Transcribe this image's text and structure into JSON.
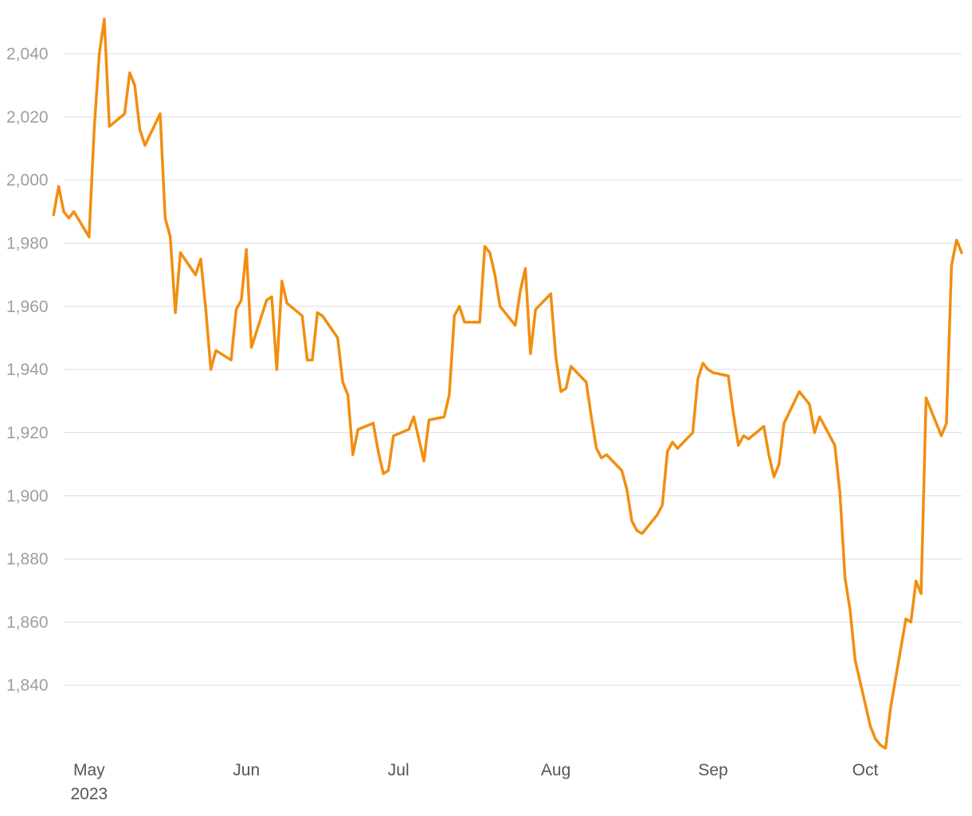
{
  "chart_data": {
    "type": "line",
    "title": "",
    "xlabel": "",
    "ylabel": "",
    "grid": true,
    "x_range": [
      "2023-04-26",
      "2023-10-20"
    ],
    "ylim": [
      1820,
      2052
    ],
    "y_ticks": [
      1840,
      1860,
      1880,
      1900,
      1920,
      1940,
      1960,
      1980,
      2000,
      2020,
      2040
    ],
    "y_tick_labels": [
      "1,840",
      "1,860",
      "1,880",
      "1,900",
      "1,920",
      "1,940",
      "1,960",
      "1,980",
      "2,000",
      "2,020",
      "2,040"
    ],
    "x_ticks": [
      {
        "date": "2023-05-01",
        "label": "May",
        "sublabel": "2023"
      },
      {
        "date": "2023-06-01",
        "label": "Jun",
        "sublabel": ""
      },
      {
        "date": "2023-07-01",
        "label": "Jul",
        "sublabel": ""
      },
      {
        "date": "2023-08-01",
        "label": "Aug",
        "sublabel": ""
      },
      {
        "date": "2023-09-01",
        "label": "Sep",
        "sublabel": ""
      },
      {
        "date": "2023-10-01",
        "label": "Oct",
        "sublabel": ""
      }
    ],
    "series_color": "#f28e0f",
    "series": [
      {
        "x": [
          "2023-04-24",
          "2023-04-25",
          "2023-04-26",
          "2023-04-27",
          "2023-04-28",
          "2023-05-01",
          "2023-05-02",
          "2023-05-03",
          "2023-05-04",
          "2023-05-05",
          "2023-05-08",
          "2023-05-09",
          "2023-05-10",
          "2023-05-11",
          "2023-05-12",
          "2023-05-15",
          "2023-05-16",
          "2023-05-17",
          "2023-05-18",
          "2023-05-19",
          "2023-05-22",
          "2023-05-23",
          "2023-05-24",
          "2023-05-25",
          "2023-05-26",
          "2023-05-29",
          "2023-05-30",
          "2023-05-31",
          "2023-06-01",
          "2023-06-02",
          "2023-06-05",
          "2023-06-06",
          "2023-06-07",
          "2023-06-08",
          "2023-06-09",
          "2023-06-12",
          "2023-06-13",
          "2023-06-14",
          "2023-06-15",
          "2023-06-16",
          "2023-06-19",
          "2023-06-20",
          "2023-06-21",
          "2023-06-22",
          "2023-06-23",
          "2023-06-26",
          "2023-06-27",
          "2023-06-28",
          "2023-06-29",
          "2023-06-30",
          "2023-07-03",
          "2023-07-04",
          "2023-07-05",
          "2023-07-06",
          "2023-07-07",
          "2023-07-10",
          "2023-07-11",
          "2023-07-12",
          "2023-07-13",
          "2023-07-14",
          "2023-07-17",
          "2023-07-18",
          "2023-07-19",
          "2023-07-20",
          "2023-07-21",
          "2023-07-24",
          "2023-07-25",
          "2023-07-26",
          "2023-07-27",
          "2023-07-28",
          "2023-07-31",
          "2023-08-01",
          "2023-08-02",
          "2023-08-03",
          "2023-08-04",
          "2023-08-07",
          "2023-08-08",
          "2023-08-09",
          "2023-08-10",
          "2023-08-11",
          "2023-08-14",
          "2023-08-15",
          "2023-08-16",
          "2023-08-17",
          "2023-08-18",
          "2023-08-21",
          "2023-08-22",
          "2023-08-23",
          "2023-08-24",
          "2023-08-25",
          "2023-08-28",
          "2023-08-29",
          "2023-08-30",
          "2023-08-31",
          "2023-09-01",
          "2023-09-04",
          "2023-09-05",
          "2023-09-06",
          "2023-09-07",
          "2023-09-08",
          "2023-09-11",
          "2023-09-12",
          "2023-09-13",
          "2023-09-14",
          "2023-09-15",
          "2023-09-18",
          "2023-09-19",
          "2023-09-20",
          "2023-09-21",
          "2023-09-22",
          "2023-09-25",
          "2023-09-26",
          "2023-09-27",
          "2023-09-28",
          "2023-09-29",
          "2023-10-02",
          "2023-10-03",
          "2023-10-04",
          "2023-10-05",
          "2023-10-06",
          "2023-10-09",
          "2023-10-10",
          "2023-10-11",
          "2023-10-12",
          "2023-10-13",
          "2023-10-16",
          "2023-10-17",
          "2023-10-18",
          "2023-10-19",
          "2023-10-20"
        ],
        "y": [
          1989,
          1998,
          1990,
          1988,
          1990,
          1982,
          2016,
          2040,
          2051,
          2017,
          2021,
          2034,
          2030,
          2016,
          2011,
          2021,
          1988,
          1982,
          1958,
          1977,
          1970,
          1975,
          1959,
          1940,
          1946,
          1943,
          1959,
          1962,
          1978,
          1947,
          1962,
          1963,
          1940,
          1968,
          1961,
          1957,
          1943,
          1943,
          1958,
          1957,
          1950,
          1936,
          1932,
          1913,
          1921,
          1923,
          1914,
          1907,
          1908,
          1919,
          1921,
          1925,
          1918,
          1911,
          1924,
          1925,
          1932,
          1957,
          1960,
          1955,
          1955,
          1979,
          1977,
          1970,
          1960,
          1954,
          1965,
          1972,
          1945,
          1959,
          1964,
          1944,
          1933,
          1934,
          1941,
          1936,
          1925,
          1915,
          1912,
          1913,
          1908,
          1902,
          1892,
          1889,
          1888,
          1894,
          1897,
          1914,
          1917,
          1915,
          1920,
          1937,
          1942,
          1940,
          1939,
          1938,
          1926,
          1916,
          1919,
          1918,
          1922,
          1913,
          1906,
          1910,
          1923,
          1933,
          1931,
          1929,
          1920,
          1925,
          1916,
          1901,
          1874,
          1864,
          1848,
          1827,
          1823,
          1821,
          1820,
          1833,
          1861,
          1860,
          1873,
          1869,
          1931,
          1919,
          1923,
          1973,
          1981,
          1977
        ]
      }
    ]
  }
}
